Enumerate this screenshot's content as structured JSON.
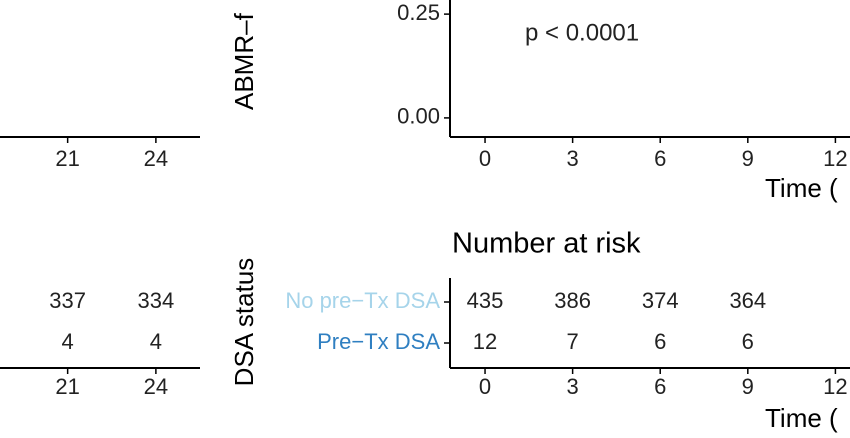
{
  "chart_data": [
    {
      "type": "line",
      "xlim": [
        18.7,
        25.5
      ],
      "xticks": [
        21,
        24
      ]
    },
    {
      "type": "table",
      "xlim": [
        18.7,
        25.5
      ],
      "xticks": [
        21,
        24
      ],
      "rows": [
        [
          337,
          334
        ],
        [
          4,
          4
        ]
      ]
    },
    {
      "type": "line",
      "ylabel": "ABMR–f",
      "xlabel": "Time (",
      "annotation": "p < 0.0001",
      "xlim": [
        -1.2,
        12.5
      ],
      "xticks": [
        0,
        3,
        6,
        9,
        12
      ],
      "ylim": [
        -0.046,
        0.284
      ],
      "yticks": [
        {
          "value": 0,
          "label": "0.00"
        },
        0.25
      ]
    },
    {
      "type": "table",
      "title": "Number at risk",
      "ylabel": "DSA status",
      "xlabel": "Time (",
      "xlim": [
        -1.2,
        12.5
      ],
      "xticks": [
        0,
        3,
        6,
        9,
        12
      ],
      "series": [
        {
          "name": "No pre−Tx DSA",
          "color": "#a6d4ea",
          "values": [
            435,
            386,
            374,
            364,
            null
          ]
        },
        {
          "name": "Pre−Tx DSA",
          "color": "#2f7fc1",
          "values": [
            12,
            7,
            6,
            6,
            null
          ]
        }
      ]
    }
  ]
}
